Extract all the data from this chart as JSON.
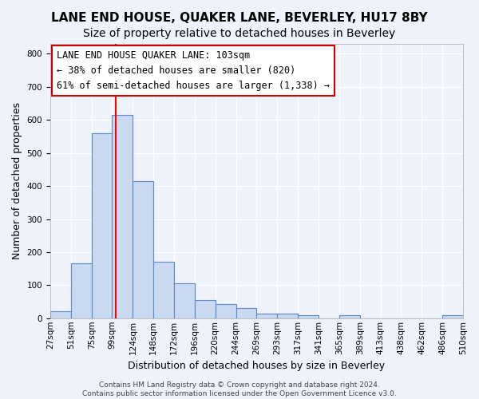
{
  "title": "LANE END HOUSE, QUAKER LANE, BEVERLEY, HU17 8BY",
  "subtitle": "Size of property relative to detached houses in Beverley",
  "xlabel": "Distribution of detached houses by size in Beverley",
  "ylabel": "Number of detached properties",
  "bin_edges": [
    "27sqm",
    "51sqm",
    "75sqm",
    "99sqm",
    "124sqm",
    "148sqm",
    "172sqm",
    "196sqm",
    "220sqm",
    "244sqm",
    "269sqm",
    "293sqm",
    "317sqm",
    "341sqm",
    "365sqm",
    "389sqm",
    "413sqm",
    "438sqm",
    "462sqm",
    "486sqm",
    "510sqm"
  ],
  "bar_heights": [
    20,
    165,
    560,
    615,
    415,
    170,
    105,
    55,
    42,
    32,
    15,
    13,
    10,
    0,
    8,
    0,
    0,
    0,
    0,
    8
  ],
  "bar_color": "#c9d9f0",
  "bar_edge_color": "#5a88c8",
  "red_line_label": "LANE END HOUSE QUAKER LANE: 103sqm",
  "annotation_line2": "← 38% of detached houses are smaller (820)",
  "annotation_line3": "61% of semi-detached houses are larger (1,338) →",
  "annotation_box_color": "#ffffff",
  "annotation_box_edge": "#cc0000",
  "ylim": [
    0,
    830
  ],
  "yticks": [
    0,
    100,
    200,
    300,
    400,
    500,
    600,
    700,
    800
  ],
  "background_color": "#eef2fb",
  "grid_color": "#ffffff",
  "footer": "Contains HM Land Registry data © Crown copyright and database right 2024.\nContains public sector information licensed under the Open Government Licence v3.0.",
  "title_fontsize": 11,
  "subtitle_fontsize": 10,
  "ylabel_fontsize": 9,
  "xlabel_fontsize": 9,
  "tick_fontsize": 7.5,
  "annotation_fontsize": 8.5,
  "footer_fontsize": 6.5
}
